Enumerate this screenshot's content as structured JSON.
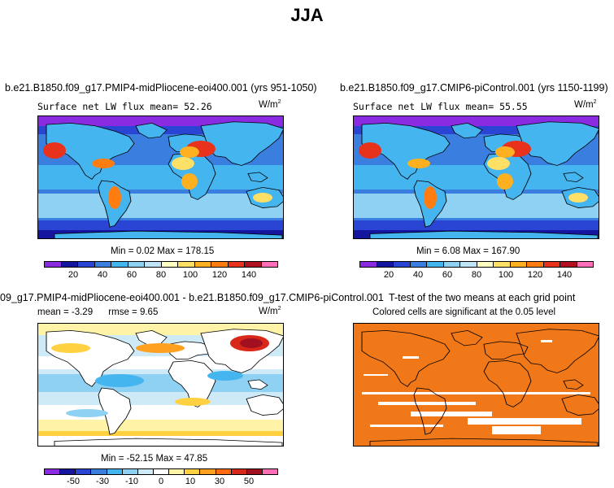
{
  "title": "JJA",
  "panels": [
    {
      "id": "mid-pliocene",
      "title": "b.e21.B1850.f09_g17.PMIP4-midPliocene-eoi400.001 (yrs 951-1050)",
      "left_label": "Surface net LW flux",
      "mean_label": "mean=",
      "mean_value": "52.26",
      "units": "W/m",
      "units_exp": "2",
      "min_label": "Min =",
      "min_value": "0.02",
      "max_label": "Max =",
      "max_value": "178.15",
      "colorbar_ticks": [
        "20",
        "40",
        "60",
        "80",
        "100",
        "120",
        "140"
      ]
    },
    {
      "id": "pi-control",
      "title": "b.e21.B1850.f09_g17.CMIP6-piControl.001 (yrs 1150-1199)",
      "left_label": "Surface net LW flux",
      "mean_label": "mean=",
      "mean_value": "55.55",
      "units": "W/m",
      "units_exp": "2",
      "min_label": "Min =",
      "min_value": "6.08",
      "max_label": "Max =",
      "max_value": "167.90",
      "colorbar_ticks": [
        "20",
        "40",
        "60",
        "80",
        "100",
        "120",
        "140"
      ]
    },
    {
      "id": "difference",
      "title": "09_g17.PMIP4-midPliocene-eoi400.001 - b.e21.B1850.f09_g17.CMIP6-piControl.001",
      "mean_label": "mean =",
      "mean_value": "-3.29",
      "rmse_label": "rmse =",
      "rmse_value": "9.65",
      "units": "W/m",
      "units_exp": "2",
      "min_label": "Min =",
      "min_value": "-52.15",
      "max_label": "Max =",
      "max_value": "47.85",
      "colorbar_ticks": [
        "-50",
        "-30",
        "-10",
        "0",
        "10",
        "30",
        "50"
      ]
    },
    {
      "id": "t-test",
      "title": "T-test of the two means at each grid point",
      "subtitle": "Colored cells are significant at the 0.05 level"
    }
  ],
  "colors": {
    "abs_scale": [
      "#8a2be2",
      "#1515a0",
      "#2a45d4",
      "#3a7fe0",
      "#45b5f0",
      "#8fd1f2",
      "#bfe4f7",
      "#ffffc2",
      "#ffe066",
      "#ffb020",
      "#ff7d10",
      "#e8321b",
      "#b01020",
      "#ff6fb7"
    ],
    "diff_scale": [
      "#8a2be2",
      "#1515a0",
      "#2a45d4",
      "#3a7fe0",
      "#45b5f0",
      "#8fd1f2",
      "#cfeaf7",
      "#ffffff",
      "#fff3a8",
      "#ffd040",
      "#ffa020",
      "#ff6a10",
      "#d8281a",
      "#a01020",
      "#ff6fb7"
    ],
    "significance": "#f07818"
  }
}
